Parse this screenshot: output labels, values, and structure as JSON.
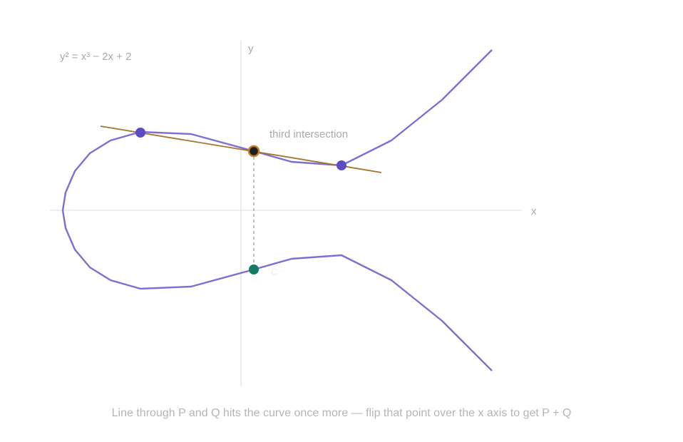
{
  "equation": "y² = x³ − 2x + 2",
  "axis_x_label": "x",
  "axis_y_label": "y",
  "annotation": "third intersection",
  "point_label_faint": "C",
  "caption": "Line through P and Q hits the curve once more — flip that point over the x axis to get P + Q",
  "colors": {
    "curve": "#7c6fd3",
    "secant": "#a8732a",
    "point": "#5b4cc4",
    "third_point_fill": "#1e1e1e",
    "third_point_ring": "#c07d22",
    "result_point": "#137b62",
    "axis": "#e3e3e3",
    "dashed": "#9a9a9a"
  }
}
